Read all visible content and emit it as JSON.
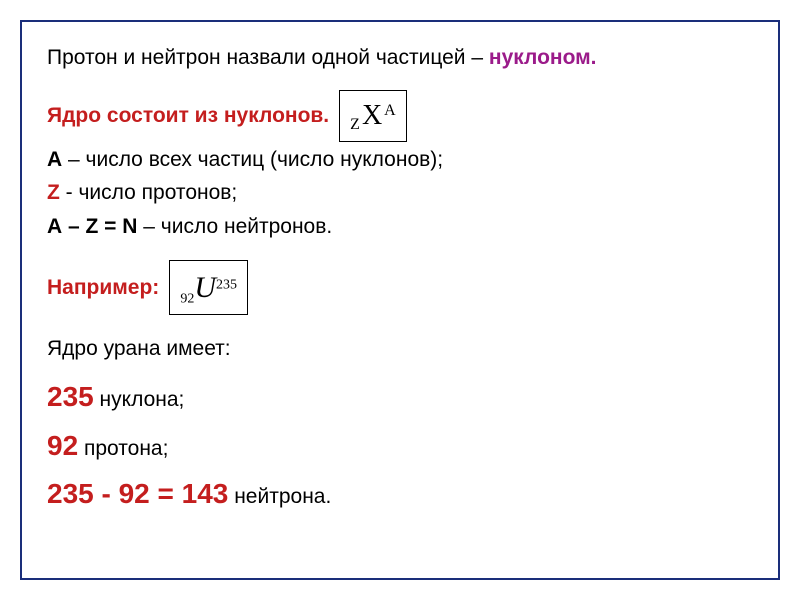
{
  "colors": {
    "border": "#1a2e7a",
    "text": "#000000",
    "purple": "#9b1b8a",
    "red": "#c41e1e",
    "background": "#ffffff"
  },
  "line1": {
    "prefix": "Протон и нейтрон назвали одной частицей – ",
    "highlight": "нуклоном."
  },
  "line2": {
    "text": "Ядро состоит из нуклонов."
  },
  "formula1": {
    "sub": "Z",
    "main": "X",
    "sup": "A"
  },
  "line3": {
    "bold": "А",
    "text": " – число всех частиц (число нуклонов);"
  },
  "line4": {
    "bold": " Z",
    "text": " - число протонов;"
  },
  "line5": {
    "bold": "А – Z = N",
    "text": " – число нейтронов."
  },
  "line6": {
    "text": "Например:"
  },
  "formula2": {
    "sub": "92",
    "main": "U",
    "sup": "235"
  },
  "line7": {
    "text": "Ядро урана имеет:"
  },
  "result1": {
    "number": "235",
    "text": " нуклона;"
  },
  "result2": {
    "number": "92",
    "text": " протона;"
  },
  "result3": {
    "lhs": "235 - 92 = 143",
    "text": " нейтрона."
  }
}
